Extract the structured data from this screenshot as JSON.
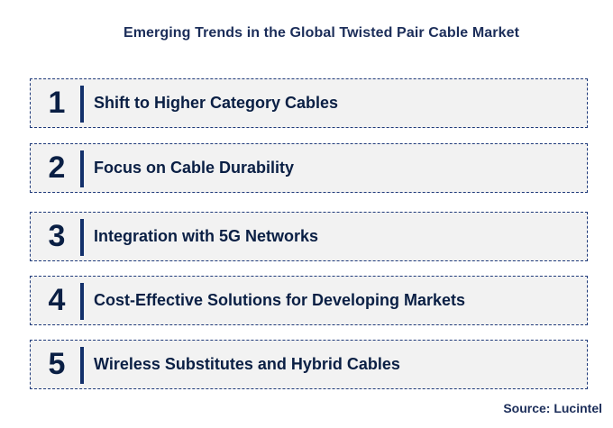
{
  "title": "Emerging Trends in the Global Twisted Pair Cable Market",
  "items": [
    {
      "number": "1",
      "label": "Shift to Higher Category Cables"
    },
    {
      "number": "2",
      "label": "Focus on Cable Durability"
    },
    {
      "number": "3",
      "label": "Integration with 5G Networks"
    },
    {
      "number": "4",
      "label": "Cost-Effective Solutions for Developing Markets"
    },
    {
      "number": "5",
      "label": "Wireless Substitutes and Hybrid Cables"
    }
  ],
  "source": "Source: Lucintel",
  "colors": {
    "text": "#0a1f44",
    "divider": "#13306b",
    "border": "#1f3a7a",
    "box_fill": "#f2f2f2"
  }
}
